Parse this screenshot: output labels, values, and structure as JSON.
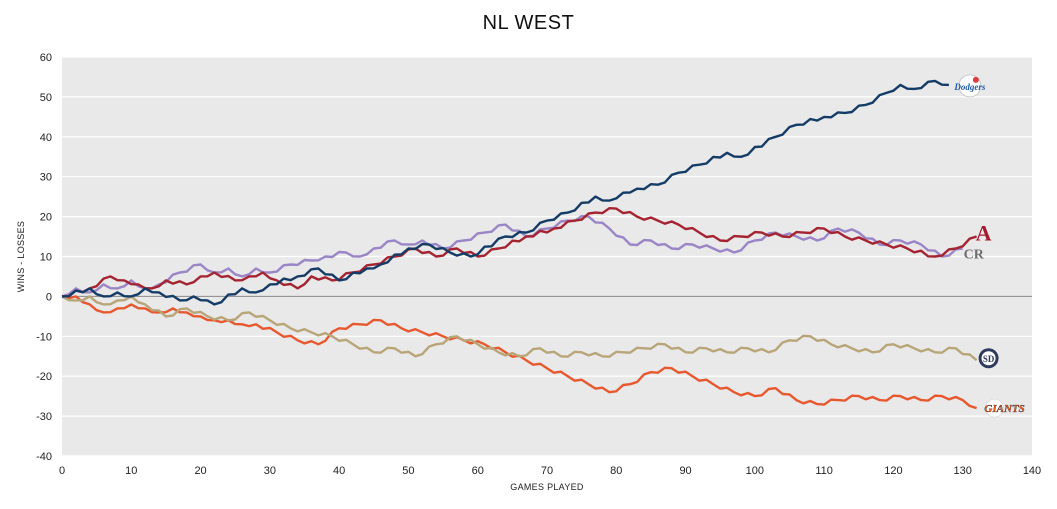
{
  "chart_data": {
    "type": "line",
    "title": "NL WEST",
    "xlabel": "GAMES PLAYED",
    "ylabel": "WINS - LOSSES",
    "xlim": [
      0,
      140
    ],
    "ylim": [
      -40,
      60
    ],
    "xticks": [
      0,
      10,
      20,
      30,
      40,
      50,
      60,
      70,
      80,
      90,
      100,
      110,
      120,
      130,
      140
    ],
    "yticks": [
      -40,
      -30,
      -20,
      -10,
      0,
      10,
      20,
      30,
      40,
      50,
      60
    ],
    "grid": "horizontal",
    "background": "#e9e9e9",
    "series": [
      {
        "team": "Dodgers",
        "color": "#143c66",
        "logo_icon": "dodgers-logo-icon",
        "x": [
          0,
          4,
          6,
          8,
          10,
          12,
          14,
          17,
          19,
          21,
          22,
          26,
          28,
          30,
          34,
          37,
          40,
          44,
          46,
          50,
          53,
          56,
          59,
          64,
          67,
          70,
          73,
          77,
          79,
          81,
          83,
          86,
          89,
          92,
          96,
          98,
          103,
          106,
          110,
          113,
          116,
          119,
          121,
          123,
          126,
          128
        ],
        "y": [
          0,
          2,
          0,
          1,
          0,
          2,
          1,
          -1,
          0,
          -1,
          -2,
          2,
          1,
          3,
          5,
          7,
          4,
          7,
          8,
          12,
          13,
          11,
          10,
          15,
          16,
          19,
          21,
          25,
          24,
          26,
          27,
          28,
          31,
          33,
          36,
          35,
          40,
          43,
          45,
          46,
          48,
          51,
          53,
          52,
          54,
          53
        ]
      },
      {
        "team": "Diamondbacks",
        "color": "#a52431",
        "logo_icon": "diamondbacks-logo-icon",
        "x": [
          0,
          4,
          7,
          9,
          11,
          13,
          15,
          18,
          20,
          22,
          25,
          27,
          29,
          31,
          34,
          36,
          39,
          42,
          45,
          48,
          51,
          54,
          57,
          60,
          63,
          67,
          71,
          74,
          77,
          80,
          83,
          86,
          89,
          92,
          95,
          98,
          101,
          104,
          107,
          110,
          113,
          116,
          119,
          122,
          126,
          129,
          132
        ],
        "y": [
          0,
          2,
          5,
          4,
          3,
          2,
          4,
          3,
          5,
          6,
          4,
          5,
          6,
          4,
          2,
          5,
          4,
          6,
          8,
          10,
          12,
          10,
          12,
          10,
          12,
          15,
          17,
          19,
          21,
          22,
          20,
          19,
          18,
          16,
          14,
          15,
          16,
          15,
          16,
          17,
          15,
          14,
          13,
          12,
          10,
          12,
          15
        ]
      },
      {
        "team": "Rockies",
        "color": "#9a86c6",
        "logo_icon": "rockies-logo-icon",
        "x": [
          0,
          2,
          4,
          6,
          8,
          10,
          12,
          14,
          17,
          20,
          22,
          24,
          26,
          28,
          30,
          33,
          36,
          38,
          41,
          43,
          45,
          48,
          50,
          52,
          55,
          58,
          61,
          64,
          67,
          70,
          73,
          76,
          79,
          82,
          85,
          88,
          91,
          94,
          97,
          100,
          103,
          106,
          109,
          112,
          115,
          118,
          121,
          124,
          127,
          130
        ],
        "y": [
          0,
          2,
          1,
          3,
          2,
          4,
          2,
          3,
          6,
          8,
          6,
          7,
          5,
          7,
          6,
          8,
          9,
          10,
          11,
          10,
          12,
          14,
          13,
          14,
          12,
          14,
          16,
          18,
          15,
          17,
          19,
          20,
          17,
          13,
          14,
          12,
          13,
          12,
          11,
          14,
          16,
          15,
          14,
          17,
          16,
          13,
          14,
          13,
          10,
          12
        ]
      },
      {
        "team": "Padres",
        "color": "#b8a578",
        "logo_icon": "padres-logo-icon",
        "x": [
          0,
          2,
          4,
          6,
          8,
          10,
          12,
          15,
          18,
          21,
          24,
          27,
          30,
          33,
          36,
          39,
          42,
          45,
          48,
          51,
          54,
          57,
          60,
          63,
          66,
          69,
          72,
          75,
          78,
          81,
          84,
          87,
          90,
          93,
          96,
          99,
          102,
          105,
          108,
          111,
          114,
          117,
          120,
          123,
          126,
          129,
          132
        ],
        "y": [
          0,
          -1,
          0,
          -2,
          -1,
          0,
          -2,
          -5,
          -3,
          -5,
          -6,
          -4,
          -6,
          -8,
          -9,
          -10,
          -12,
          -14,
          -13,
          -15,
          -12,
          -10,
          -12,
          -14,
          -15,
          -13,
          -15,
          -14,
          -15,
          -14,
          -13,
          -12,
          -14,
          -13,
          -14,
          -13,
          -14,
          -11,
          -10,
          -12,
          -13,
          -14,
          -12,
          -13,
          -14,
          -13,
          -16
        ]
      },
      {
        "team": "Giants",
        "color": "#e8582e",
        "logo_icon": "giants-logo-icon",
        "x": [
          0,
          2,
          4,
          6,
          8,
          10,
          12,
          14,
          16,
          18,
          20,
          22,
          24,
          26,
          28,
          31,
          34,
          37,
          40,
          43,
          46,
          49,
          52,
          55,
          58,
          61,
          64,
          67,
          70,
          73,
          76,
          79,
          82,
          85,
          88,
          91,
          94,
          97,
          100,
          103,
          106,
          109,
          112,
          115,
          118,
          121,
          124,
          127,
          130,
          132
        ],
        "y": [
          0,
          0,
          -2,
          -4,
          -3,
          -2,
          -3,
          -4,
          -3,
          -4,
          -5,
          -6,
          -6,
          -7,
          -7,
          -9,
          -11,
          -12,
          -8,
          -7,
          -6,
          -8,
          -9,
          -10,
          -11,
          -12,
          -14,
          -16,
          -18,
          -20,
          -22,
          -24,
          -22,
          -19,
          -18,
          -20,
          -22,
          -24,
          -25,
          -23,
          -26,
          -27,
          -26,
          -25,
          -26,
          -25,
          -26,
          -25,
          -26,
          -28
        ]
      }
    ]
  }
}
